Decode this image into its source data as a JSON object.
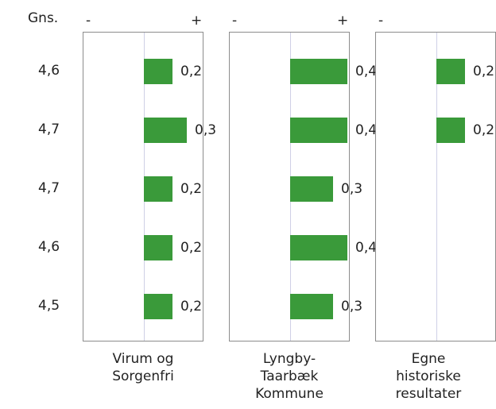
{
  "header": {
    "avg_label": "Gns."
  },
  "signs": {
    "minus": "-",
    "plus": "+"
  },
  "colors": {
    "bar": "#3a9a3a",
    "zero_line": "#cfd0e6",
    "frame": "#8c8c8c"
  },
  "chart_data": {
    "type": "bar",
    "orientation": "horizontal",
    "grid": false,
    "row_averages": [
      "4,6",
      "4,7",
      "4,7",
      "4,6",
      "4,5"
    ],
    "series": [
      {
        "name": "Virum og Sorgenfri",
        "label_lines": [
          "Virum og",
          "Sorgenfri"
        ],
        "values": [
          0.2,
          0.3,
          0.2,
          0.2,
          0.2
        ],
        "value_labels": [
          "0,2",
          "0,3",
          "0,2",
          "0,2",
          "0,2"
        ]
      },
      {
        "name": "Lyngby-Taarbæk Kommune",
        "label_lines": [
          "Lyngby-",
          "Taarbæk",
          "Kommune"
        ],
        "values": [
          0.4,
          0.4,
          0.3,
          0.4,
          0.3
        ],
        "value_labels": [
          "0,4",
          "0,4",
          "0,3",
          "0,4",
          "0,3"
        ]
      },
      {
        "name": "Egne historiske resultater",
        "label_lines": [
          "Egne",
          "historiske",
          "resultater"
        ],
        "values": [
          0.2,
          0.2
        ],
        "value_labels": [
          "0,2",
          "0,2"
        ]
      }
    ]
  }
}
